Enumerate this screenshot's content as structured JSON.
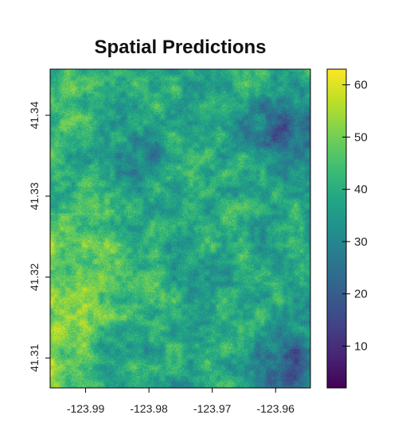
{
  "chart_data": {
    "type": "heatmap",
    "title": "Spatial Predictions",
    "xlabel": "",
    "ylabel": "",
    "x_ticks": [
      -123.99,
      -123.98,
      -123.97,
      -123.96
    ],
    "x_tick_labels": [
      "-123.99",
      "-123.98",
      "-123.97",
      "-123.96"
    ],
    "y_ticks": [
      41.31,
      41.32,
      41.33,
      41.34
    ],
    "y_tick_labels": [
      "41.31",
      "41.32",
      "41.33",
      "41.34"
    ],
    "xlim": [
      -123.9956,
      -123.9545
    ],
    "ylim": [
      41.3063,
      41.3457
    ],
    "colorbar": {
      "ticks": [
        10,
        20,
        30,
        40,
        50,
        60
      ],
      "tick_labels": [
        "10",
        "20",
        "30",
        "40",
        "50",
        "60"
      ],
      "range": [
        2,
        63
      ],
      "colormap": "viridis"
    },
    "value_regions": [
      {
        "description": "low-value patch (upper right)",
        "lon": -123.959,
        "lat": 41.338,
        "value": 10
      },
      {
        "description": "low-value patch (lower right)",
        "lon": -123.958,
        "lat": 41.309,
        "value": 12
      },
      {
        "description": "high-value band (left edge)",
        "lon": -123.994,
        "lat": 41.316,
        "value": 56
      },
      {
        "description": "high-value area (left, mid)",
        "lon": -123.99,
        "lat": 41.322,
        "value": 50
      },
      {
        "description": "moderate area (center)",
        "lon": -123.975,
        "lat": 41.326,
        "value": 40
      }
    ]
  },
  "colors": {
    "viridis_low": "#440154",
    "viridis_mid": "#21908d",
    "viridis_high": "#fde725"
  }
}
